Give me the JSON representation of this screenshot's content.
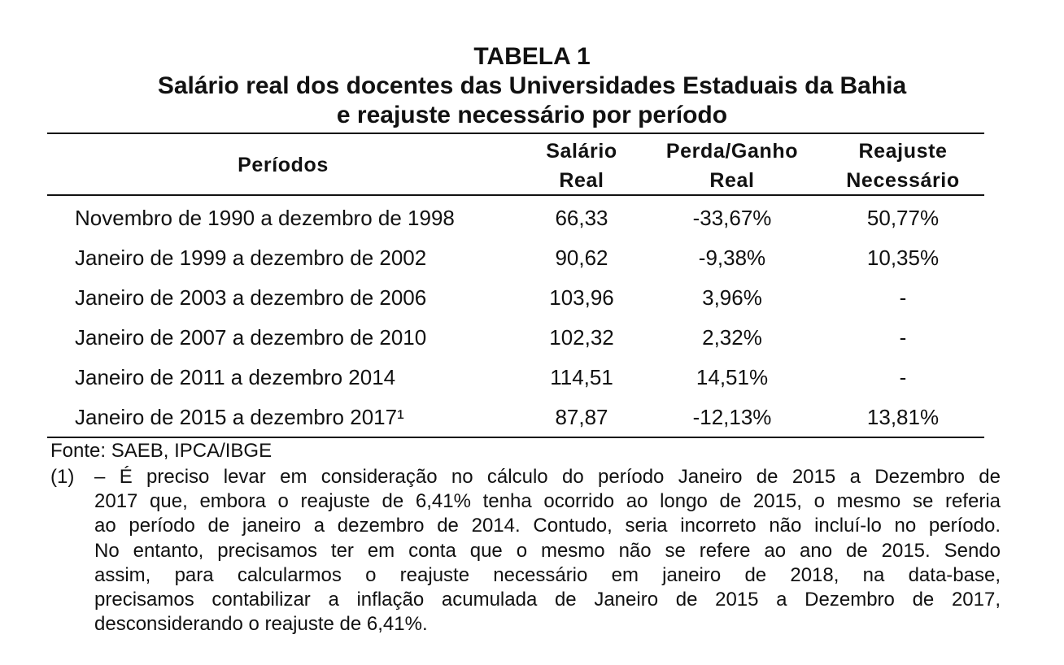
{
  "title": {
    "line1": "TABELA 1",
    "line2": "Salário real dos docentes das Universidades Estaduais da Bahia",
    "line3": "e reajuste necessário por período"
  },
  "table": {
    "headers": {
      "periodos": "Períodos",
      "salario_line1": "Salário",
      "salario_line2": "Real",
      "perda_line1": "Perda/Ganho",
      "perda_line2": "Real",
      "reajuste_line1": "Reajuste",
      "reajuste_line2": "Necessário"
    },
    "rows": [
      {
        "periodo": "Novembro de 1990 a dezembro de 1998",
        "salario": "66,33",
        "perda": "-33,67%",
        "reajuste": "50,77%"
      },
      {
        "periodo": "Janeiro de 1999 a dezembro de 2002",
        "salario": "90,62",
        "perda": "-9,38%",
        "reajuste": "10,35%"
      },
      {
        "periodo": "Janeiro de 2003 a dezembro de 2006",
        "salario": "103,96",
        "perda": "3,96%",
        "reajuste": "-"
      },
      {
        "periodo": "Janeiro de 2007 a dezembro de 2010",
        "salario": "102,32",
        "perda": "2,32%",
        "reajuste": "-"
      },
      {
        "periodo": "Janeiro de 2011 a dezembro 2014",
        "salario": "114,51",
        "perda": "14,51%",
        "reajuste": "-"
      },
      {
        "periodo": "Janeiro de 2015 a dezembro 2017¹",
        "salario": "87,87",
        "perda": "-12,13%",
        "reajuste": "13,81%"
      }
    ]
  },
  "source": "Fonte: SAEB, IPCA/IBGE",
  "note": {
    "marker": "(1)",
    "lines": [
      "– É preciso levar em consideração no cálculo do período Janeiro de 2015 a Dezembro de",
      "2017 que, embora o reajuste de 6,41% tenha ocorrido ao longo de 2015, o mesmo se referia",
      "ao período de janeiro a dezembro de 2014. Contudo, seria incorreto não incluí-lo no período.",
      "No entanto, precisamos ter em conta que o mesmo não se refere ao ano de 2015. Sendo",
      "assim, para calcularmos o reajuste necessário em janeiro de 2018, na data-base,",
      "precisamos contabilizar a inflação acumulada de Janeiro de 2015 a Dezembro de 2017,",
      "desconsiderando o reajuste de 6,41%."
    ]
  }
}
